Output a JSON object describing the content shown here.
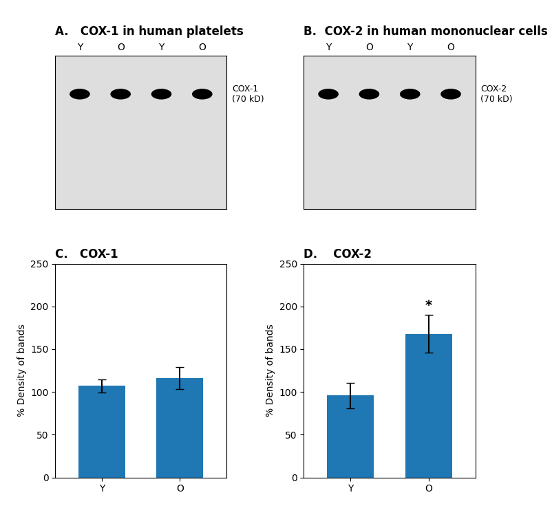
{
  "chart_data": [
    {
      "type": "blot",
      "title": "A.   COX-1 in human platelets",
      "categories": [
        "Y",
        "O",
        "Y",
        "O"
      ],
      "tick_labels": "x",
      "annotations": [
        "COX-1\n(70 kD)"
      ]
    },
    {
      "type": "blot",
      "title": "B.  COX-2 in human mononuclear cells",
      "categories": [
        "Y",
        "O",
        "Y",
        "O"
      ],
      "tick_labels": "x",
      "annotations": [
        "COX-2\n(70 kD)"
      ]
    },
    {
      "type": "bar",
      "title": "C.   COX-1",
      "ylabel": "% Density of bands",
      "categories": [
        "Y",
        "O"
      ],
      "values": [
        107,
        116
      ],
      "errors": [
        8,
        13
      ],
      "ylim": [
        0,
        250
      ],
      "yticks": [
        0,
        50,
        100,
        150,
        200,
        250
      ]
    },
    {
      "type": "bar",
      "title": "D.    COX-2",
      "ylabel": "% Density of bands",
      "categories": [
        "Y",
        "O"
      ],
      "values": [
        96,
        168
      ],
      "errors": [
        15,
        22
      ],
      "ylim": [
        0,
        250
      ],
      "yticks": [
        0,
        50,
        100,
        150,
        200,
        250
      ],
      "annotations": [
        {
          "text": "*",
          "category": "O"
        }
      ]
    }
  ]
}
